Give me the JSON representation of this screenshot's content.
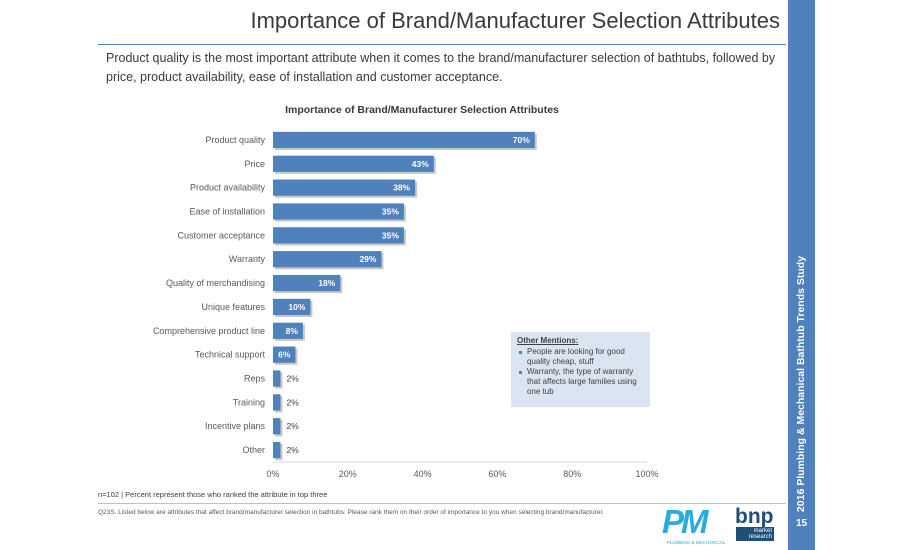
{
  "header": {
    "title": "Importance of Brand/Manufacturer Selection Attributes",
    "subtitle": "Product quality is the most important attribute when it comes to the brand/manufacturer selection of bathtubs, followed by price, product availability, ease of installation and customer acceptance."
  },
  "sidebar": {
    "study_label": "2016 Plumbing & Mechanical Bathtub Trends Study",
    "page_number": "15"
  },
  "chart_data": {
    "type": "bar",
    "orientation": "horizontal",
    "title": "Importance of Brand/Manufacturer Selection Attributes",
    "categories": [
      "Product quality",
      "Price",
      "Product availability",
      "Ease of installation",
      "Customer acceptance",
      "Warranty",
      "Quality of merchandising",
      "Unique features",
      "Comprehensive product line",
      "Technical support",
      "Reps",
      "Training",
      "Incentive plans",
      "Other"
    ],
    "values": [
      70,
      43,
      38,
      35,
      35,
      29,
      18,
      10,
      8,
      6,
      2,
      2,
      2,
      2
    ],
    "value_labels": [
      "70%",
      "43%",
      "38%",
      "35%",
      "35%",
      "29%",
      "18%",
      "10%",
      "8%",
      "6%",
      "2%",
      "2%",
      "2%",
      "2%"
    ],
    "xlim": [
      0,
      100
    ],
    "xticks": [
      0,
      20,
      40,
      60,
      80,
      100
    ],
    "xtick_labels": [
      "0%",
      "20%",
      "40%",
      "60%",
      "80%",
      "100%"
    ],
    "xlabel": "",
    "ylabel": "",
    "grid": false,
    "bar_color": "#4f81bd"
  },
  "callout": {
    "title": "Other Mentions:",
    "items": [
      "People are looking for good quality cheap, stuff",
      "Warranty, the type of warranty that affects large families using one tub"
    ]
  },
  "footer": {
    "note": "n=102 | Percent represent those who ranked the attribute in top three",
    "question": "Q23S. Listed below are attributes that affect brand/manufacturer selection in bathtubs. Please rank them on their order of importance to you when selecting brand/manufacturer."
  },
  "logos": {
    "pm_text": "PM",
    "pm_sub": "PLUMBING & MECHANICAL",
    "bnp_text": "bnp",
    "bnp_sub": "market research"
  },
  "colors": {
    "accent": "#4f81bd",
    "callout_bg": "#dbe5f1"
  }
}
